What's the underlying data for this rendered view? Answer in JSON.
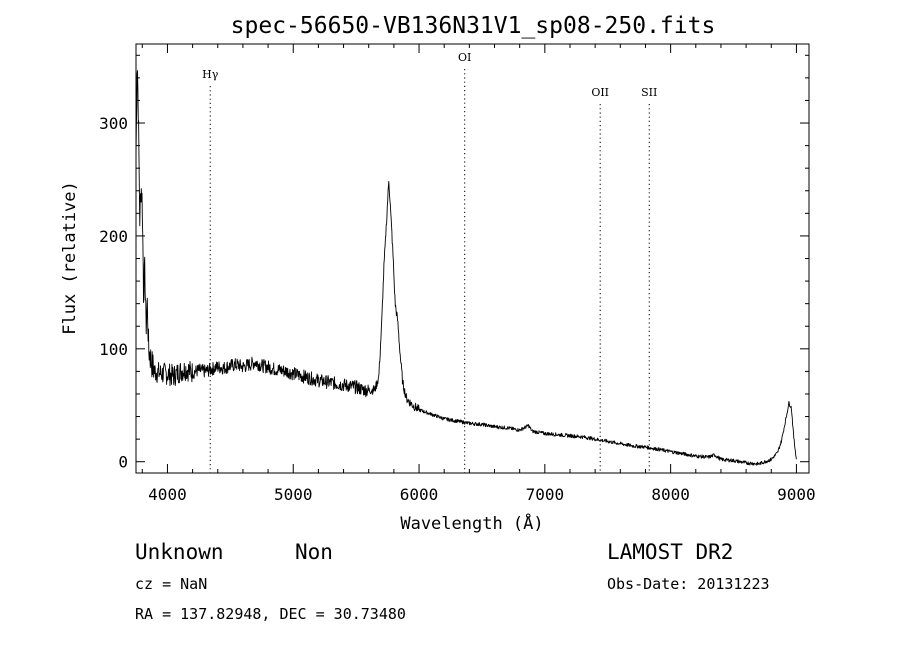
{
  "chart_data": {
    "type": "line",
    "title": "spec-56650-VB136N31V1_sp08-250.fits",
    "xlabel": "Wavelength (Å)",
    "ylabel": "Flux (relative)",
    "xlim": [
      3750,
      9100
    ],
    "ylim": [
      -10,
      370
    ],
    "xticks": [
      4000,
      5000,
      6000,
      7000,
      8000,
      9000
    ],
    "yticks": [
      0,
      100,
      200,
      300
    ],
    "grid": false,
    "line_color": "#000000",
    "lines": [
      {
        "label": "Hγ",
        "x": 4340
      },
      {
        "label": "OI",
        "x": 6363
      },
      {
        "label": "OII",
        "x": 7440
      },
      {
        "label": "SII",
        "x": 7830
      }
    ],
    "series": [
      {
        "x": [
          3750,
          3760,
          3770,
          3780,
          3790,
          3800,
          3810,
          3820,
          3830,
          3840,
          3850,
          3860,
          3880,
          3900,
          3950,
          4000,
          4050,
          4100,
          4150,
          4200,
          4250,
          4300,
          4350,
          4400,
          4450,
          4500,
          4550,
          4600,
          4650,
          4700,
          4750,
          4800,
          4850,
          4900,
          4950,
          5000,
          5100,
          5200,
          5300,
          5400,
          5500,
          5550,
          5600,
          5650,
          5680,
          5700,
          5720,
          5740,
          5760,
          5775,
          5790,
          5810,
          5830,
          5850,
          5870,
          5900,
          5950,
          6000,
          6100,
          6200,
          6300,
          6400,
          6500,
          6600,
          6700,
          6800,
          6870,
          6900,
          7000,
          7100,
          7200,
          7300,
          7400,
          7500,
          7600,
          7700,
          7800,
          7900,
          8000,
          8100,
          8200,
          8300,
          8350,
          8400,
          8500,
          8600,
          8700,
          8750,
          8800,
          8850,
          8880,
          8920,
          8940,
          8960,
          8980,
          9000
        ],
        "y": [
          270,
          360,
          300,
          215,
          245,
          230,
          150,
          170,
          120,
          140,
          100,
          95,
          85,
          80,
          78,
          78,
          76,
          80,
          82,
          79,
          81,
          80,
          82,
          84,
          83,
          85,
          86,
          84,
          86,
          88,
          85,
          84,
          82,
          81,
          80,
          78,
          75,
          72,
          70,
          68,
          66,
          64,
          63,
          64,
          75,
          115,
          170,
          210,
          250,
          220,
          190,
          140,
          125,
          95,
          70,
          56,
          50,
          46,
          42,
          38,
          36,
          34,
          33,
          31,
          30,
          28,
          32,
          27,
          25,
          24,
          23,
          22,
          20,
          18,
          16,
          14,
          13,
          11,
          9,
          7,
          5,
          4,
          6,
          2,
          1,
          -1,
          -2,
          0,
          2,
          8,
          18,
          40,
          52,
          48,
          20,
          2
        ]
      }
    ]
  },
  "footer": {
    "object_class": "Unknown",
    "subclass": "Non",
    "survey": "LAMOST DR2",
    "cz": "cz = NaN",
    "obs_date": "Obs-Date: 20131223",
    "coords": "RA = 137.82948, DEC =  30.73480"
  }
}
